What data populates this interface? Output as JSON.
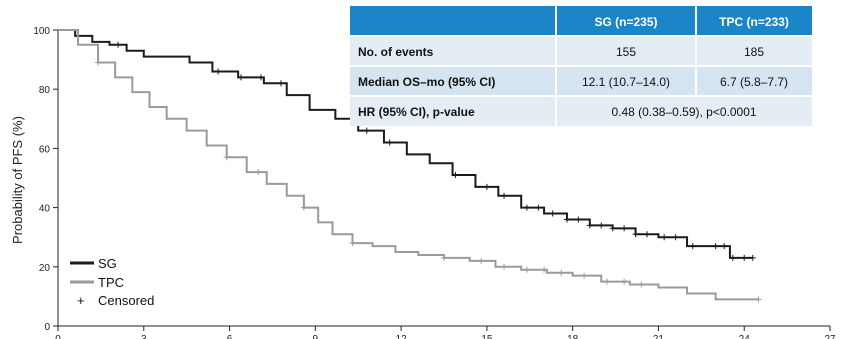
{
  "colors": {
    "sg": "#1a1a1a",
    "tpc": "#9a9a9a",
    "table_header": "#1a86c8",
    "table_row_light": "#e4ecf4",
    "table_row_lighter": "#d6e3f0"
  },
  "chart_data": {
    "type": "line",
    "title": "",
    "xlabel": "",
    "ylabel": "Probability of PFS (%)",
    "xlim": [
      0,
      27
    ],
    "ylim": [
      0,
      100
    ],
    "x_ticks": [
      0,
      3,
      6,
      9,
      12,
      15,
      18,
      21,
      24,
      27
    ],
    "y_ticks": [
      0,
      20,
      40,
      60,
      80,
      100
    ],
    "grid": false,
    "legend": {
      "placement": "bottom-left",
      "entries": [
        {
          "label": "SG",
          "color": "#1a1a1a"
        },
        {
          "label": "TPC",
          "color": "#9a9a9a"
        },
        {
          "label": "Censored",
          "symbol": "+"
        }
      ]
    },
    "series": [
      {
        "name": "SG",
        "color": "#1a1a1a",
        "x": [
          0,
          0.6,
          1.2,
          1.8,
          2.4,
          3.0,
          3.8,
          4.6,
          5.4,
          6.3,
          7.2,
          8.0,
          8.8,
          9.7,
          10.5,
          11.4,
          12.2,
          13.0,
          13.8,
          14.6,
          15.4,
          16.2,
          17.0,
          17.8,
          18.6,
          19.4,
          20.2,
          21.0,
          22.0,
          22.7,
          23.5,
          24.3
        ],
        "y": [
          100,
          98,
          96,
          95,
          93,
          91,
          91,
          89,
          86,
          84,
          82,
          78,
          73,
          70,
          66,
          62,
          58,
          55,
          51,
          47,
          44,
          40,
          38,
          36,
          34,
          33,
          31,
          30,
          27,
          27,
          23,
          23
        ]
      },
      {
        "name": "TPC",
        "color": "#9a9a9a",
        "x": [
          0,
          0.7,
          1.4,
          2.0,
          2.6,
          3.2,
          3.8,
          4.5,
          5.2,
          5.9,
          6.6,
          7.3,
          8.0,
          8.6,
          9.1,
          9.6,
          10.3,
          11.0,
          11.8,
          12.6,
          13.5,
          14.4,
          15.3,
          16.2,
          17.1,
          18.0,
          19.0,
          20.0,
          21.0,
          22.0,
          23.0,
          24.0,
          24.5
        ],
        "y": [
          100,
          95,
          89,
          84,
          79,
          74,
          70,
          66,
          61,
          57,
          52,
          48,
          44,
          40,
          35,
          31,
          28,
          27,
          25,
          24,
          23,
          22,
          20,
          19,
          18,
          17,
          15,
          14,
          13,
          11,
          9,
          9,
          9
        ]
      }
    ],
    "censored": [
      {
        "series": "SG",
        "x": [
          2.1,
          5.6,
          6.4,
          7.1,
          7.8,
          10.8,
          11.6,
          13.9,
          15.0,
          15.6,
          16.4,
          16.8,
          17.3,
          17.8,
          18.2,
          18.6,
          19.0,
          19.4,
          19.8,
          20.2,
          20.6,
          21.2,
          21.6,
          22.2,
          23.0,
          23.3,
          23.6,
          24.0,
          24.3
        ]
      },
      {
        "series": "TPC",
        "x": [
          1.4,
          5.9,
          7.0,
          8.6,
          10.3,
          13.5,
          14.8,
          15.6,
          16.4,
          17.0,
          17.6,
          18.4,
          19.2,
          19.8,
          20.4,
          24.5
        ]
      }
    ],
    "table": {
      "header": [
        "",
        "SG (n=235)",
        "TPC (n=233)"
      ],
      "rows": [
        {
          "label": "No. of events",
          "cells": [
            "155",
            "185"
          ]
        },
        {
          "label": "Median OS–mo (95% CI)",
          "cells": [
            "12.1 (10.7–14.0)",
            "6.7 (5.8–7.7)"
          ]
        },
        {
          "label": "HR (95% CI), p-value",
          "merged": "0.48 (0.38–0.59), p<0.0001"
        }
      ]
    }
  }
}
